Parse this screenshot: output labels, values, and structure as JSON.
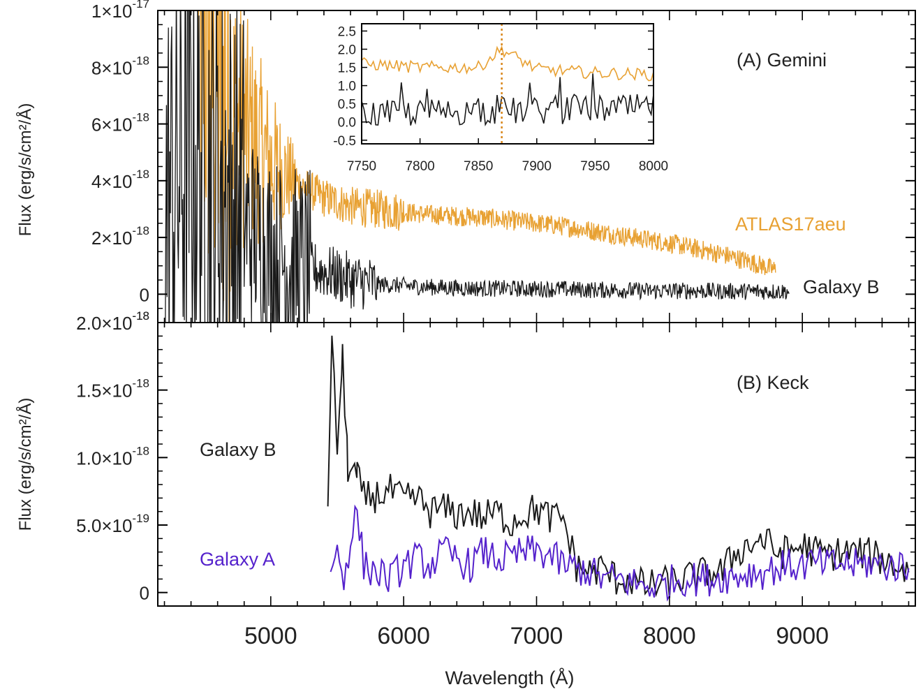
{
  "x_axis_label": "Wavelength (Å)",
  "colors": {
    "atlas": "#e8a133",
    "galaxyB": "#1a1a1a",
    "galaxyA": "#5522cc",
    "marker": "#d9861a",
    "axis": "#000000"
  },
  "chart_data": [
    {
      "type": "line",
      "title": "(A) Gemini",
      "ylabel": "Flux (erg/s/cm²/Å)",
      "xlim": [
        4150,
        9850
      ],
      "ylim": [
        -1e-18,
        1e-17
      ],
      "x_ticks": [
        5000,
        6000,
        7000,
        8000,
        9000
      ],
      "y_tick_labels": [
        {
          "value": 1e-17,
          "label": "1×10",
          "exp": "-17"
        },
        {
          "value": 8e-18,
          "label": "8×10",
          "exp": "-18"
        },
        {
          "value": 6e-18,
          "label": "6×10",
          "exp": "-18"
        },
        {
          "value": 4e-18,
          "label": "4×10",
          "exp": "-18"
        },
        {
          "value": 2e-18,
          "label": "2×10",
          "exp": "-18"
        },
        {
          "value": 0,
          "label": "0",
          "exp": ""
        },
        {
          "value": -1e-18,
          "label": "",
          "exp": "-18"
        }
      ],
      "series": [
        {
          "name": "ATLAS17aeu",
          "color": "#e8a133",
          "x": [
            4450,
            4600,
            4800,
            5000,
            5200,
            5400,
            5600,
            5800,
            6000,
            6200,
            6400,
            6600,
            6800,
            7000,
            7200,
            7400,
            7600,
            7800,
            8000,
            8200,
            8400,
            8600,
            8800
          ],
          "y": [
            9.5e-18,
            7.5e-18,
            5.8e-18,
            4.6e-18,
            3.9e-18,
            3.4e-18,
            3.1e-18,
            3e-18,
            2.9e-18,
            2.8e-18,
            2.75e-18,
            2.7e-18,
            2.6e-18,
            2.5e-18,
            2.4e-18,
            2.25e-18,
            2.1e-18,
            1.95e-18,
            1.8e-18,
            1.6e-18,
            1.4e-18,
            1.15e-18,
            8.5e-19
          ]
        },
        {
          "name": "Galaxy B",
          "color": "#1a1a1a",
          "x": [
            4200,
            4400,
            4600,
            4800,
            5000,
            5200,
            5400,
            5600,
            5800,
            6000,
            6200,
            6400,
            6600,
            6800,
            7000,
            7200,
            7400,
            7600,
            7800,
            8000,
            8200,
            8400,
            8600,
            8800,
            8900
          ],
          "y": [
            3e-18,
            5e-18,
            4e-18,
            2.5e-18,
            1.5e-18,
            1e-18,
            8e-19,
            5e-19,
            3.5e-19,
            3e-19,
            2.5e-19,
            2.2e-19,
            2e-19,
            2e-19,
            1.8e-19,
            1.8e-19,
            1.5e-19,
            1.5e-19,
            1.2e-19,
            1.2e-19,
            1.2e-19,
            1e-19,
            1e-19,
            1e-19,
            1e-19
          ]
        }
      ],
      "legend": [
        {
          "name": "ATLAS17aeu",
          "color": "#e8a133"
        },
        {
          "name": "Galaxy B",
          "color": "#1a1a1a"
        }
      ],
      "inset": {
        "xlim": [
          7750,
          8000
        ],
        "ylim": [
          -0.6,
          2.7
        ],
        "x_ticks": [
          7750,
          7800,
          7850,
          7900,
          7950,
          8000
        ],
        "y_ticks": [
          -0.5,
          0.0,
          0.5,
          1.0,
          1.5,
          2.0,
          2.5
        ],
        "marker_x": 7870,
        "series": [
          {
            "name": "ATLAS17aeu",
            "color": "#e8a133",
            "x": [
              7750,
              7800,
              7850,
              7870,
              7900,
              7950,
              8000
            ],
            "y": [
              1.6,
              1.5,
              1.5,
              2.0,
              1.45,
              1.35,
              1.3
            ]
          },
          {
            "name": "Galaxy B",
            "color": "#1a1a1a",
            "x": [
              7750,
              7800,
              7850,
              7900,
              7950,
              8000
            ],
            "y": [
              0.2,
              0.25,
              0.3,
              0.3,
              0.35,
              0.4
            ]
          }
        ]
      }
    },
    {
      "type": "line",
      "title": "(B) Keck",
      "ylabel": "Flux (erg/s/cm²/Å)",
      "xlim": [
        4150,
        9850
      ],
      "ylim": [
        -1e-19,
        2e-18
      ],
      "x_ticks": [
        5000,
        6000,
        7000,
        8000,
        9000
      ],
      "y_tick_labels": [
        {
          "value": 2e-18,
          "label": "2.0×10",
          "exp": "-18"
        },
        {
          "value": 1.5e-18,
          "label": "1.5×10",
          "exp": "-18"
        },
        {
          "value": 1e-18,
          "label": "1.0×10",
          "exp": "-18"
        },
        {
          "value": 5e-19,
          "label": "5.0×10",
          "exp": "-19"
        },
        {
          "value": 0,
          "label": "0",
          "exp": ""
        }
      ],
      "series": [
        {
          "name": "Galaxy B",
          "color": "#1a1a1a",
          "x": [
            5430,
            5460,
            5500,
            5540,
            5580,
            5650,
            5700,
            5800,
            5900,
            6000,
            6100,
            6200,
            6300,
            6400,
            6500,
            6600,
            6700,
            6800,
            6900,
            7000,
            7100,
            7200,
            7300,
            7400,
            7500,
            7600,
            7700,
            7800,
            7900,
            8000,
            8100,
            8200,
            8300,
            8400,
            8500,
            8600,
            8700,
            8800,
            8900,
            9000,
            9100,
            9200,
            9300,
            9400,
            9500,
            9600,
            9700,
            9800
          ],
          "y": [
            7.5e-19,
            1.8e-18,
            1.1e-18,
            1.7e-18,
            9.5e-19,
            8.5e-19,
            7e-19,
            7.2e-19,
            7.5e-19,
            6.8e-19,
            7e-19,
            6e-19,
            6.2e-19,
            5.8e-19,
            6e-19,
            5.5e-19,
            6e-19,
            5.2e-19,
            5.8e-19,
            6.2e-19,
            5.5e-19,
            5.5e-19,
            2e-19,
            1.5e-19,
            1.8e-19,
            1e-19,
            1e-19,
            5e-20,
            5e-20,
            8e-20,
            1e-19,
            1.2e-19,
            1.5e-19,
            1.5e-19,
            3e-19,
            3.5e-19,
            4e-19,
            3e-19,
            3e-19,
            3.5e-19,
            3e-19,
            2.8e-19,
            3e-19,
            3e-19,
            2.8e-19,
            2.5e-19,
            2e-19,
            1.5e-19
          ]
        },
        {
          "name": "Galaxy A",
          "color": "#5522cc",
          "x": [
            5450,
            5500,
            5550,
            5600,
            5650,
            5700,
            5800,
            5900,
            6000,
            6100,
            6200,
            6300,
            6400,
            6500,
            6600,
            6700,
            6800,
            6900,
            7000,
            7100,
            7200,
            7300,
            7400,
            7500,
            7600,
            7700,
            7800,
            7900,
            8000,
            8100,
            8200,
            8300,
            8400,
            8500,
            8600,
            8700,
            8800,
            8900,
            9000,
            9100,
            9200,
            9300,
            9400,
            9500,
            9600,
            9700,
            9800
          ],
          "y": [
            2e-19,
            3e-19,
            1e-19,
            4e-19,
            6e-19,
            2e-19,
            1.5e-19,
            1e-19,
            2e-19,
            2.5e-19,
            2e-19,
            3e-19,
            2.5e-19,
            2e-19,
            3e-19,
            2.5e-19,
            2.5e-19,
            3e-19,
            3e-19,
            2.8e-19,
            2e-19,
            1.8e-19,
            1.5e-19,
            1e-19,
            1e-19,
            8e-20,
            5e-20,
            5e-20,
            8e-20,
            1e-19,
            1e-19,
            1e-19,
            1.2e-19,
            1.2e-19,
            1.5e-19,
            1.5e-19,
            1.8e-19,
            2e-19,
            2e-19,
            2.2e-19,
            2e-19,
            2.2e-19,
            2e-19,
            2.2e-19,
            2e-19,
            2e-19,
            1.8e-19
          ]
        }
      ],
      "legend": [
        {
          "name": "Galaxy B",
          "color": "#1a1a1a"
        },
        {
          "name": "Galaxy A",
          "color": "#5522cc"
        }
      ]
    }
  ]
}
